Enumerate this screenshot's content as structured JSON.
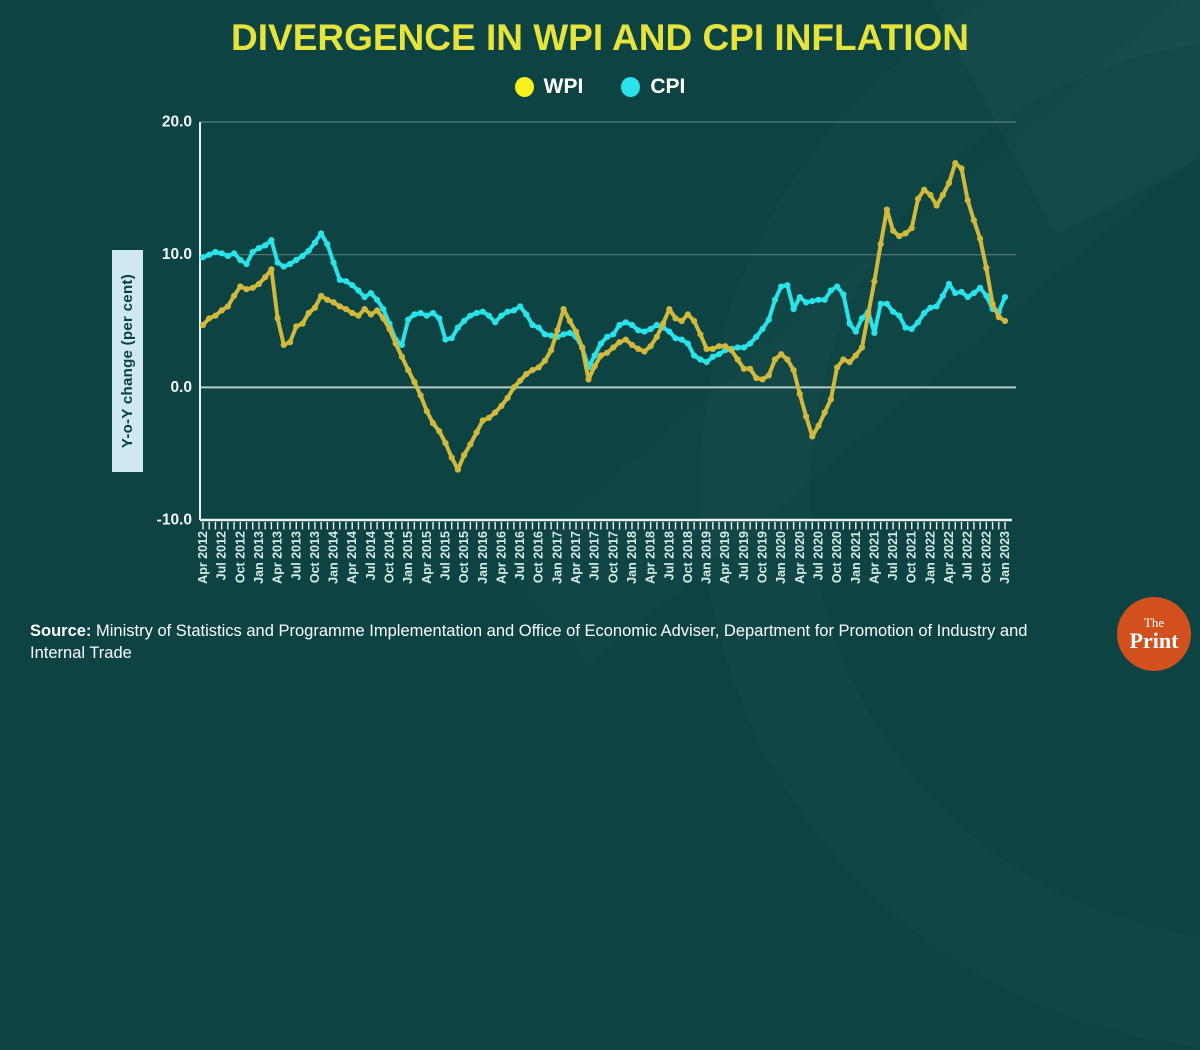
{
  "title": "DIVERGENCE IN WPI AND CPI INFLATION",
  "legend": {
    "items": [
      {
        "label": "WPI",
        "color": "#f6f21c"
      },
      {
        "label": "CPI",
        "color": "#29e2ea"
      }
    ]
  },
  "y_axis": {
    "title": "Y-o-Y change (per cent)",
    "tick_labels": [
      "20.0",
      "10.0",
      "0.0",
      "-10.0"
    ]
  },
  "source": {
    "label": "Source:",
    "text": " Ministry of Statistics and Programme Implementation  and Office of Economic Adviser, Department for Promotion of Industry and Internal Trade"
  },
  "logo": {
    "line1": "The",
    "line2": "Print"
  },
  "colors": {
    "background": "#0d4343",
    "title": "#e6e33c",
    "axis": "#e9f4f1",
    "gridline": "rgba(255,255,255,0.30)",
    "zero_line": "rgba(240,248,246,0.75)",
    "x_tick_label": "#d5ebe4",
    "y_tick_label": "#f3f8f6",
    "wpi_line": "#d0b93c",
    "cpi_line": "#29e2ea"
  },
  "chart_data": {
    "type": "line",
    "title": "DIVERGENCE IN WPI AND CPI INFLATION",
    "ylabel": "Y-o-Y change (per cent)",
    "ylim": [
      -10,
      20
    ],
    "y_gridlines": [
      20,
      10,
      0
    ],
    "x_frequency": "monthly",
    "x_start": "Apr 2012",
    "x_end": "Jan 2023",
    "legend_position": "top-center",
    "x_tick_labels": [
      "Apr 2012",
      "Jul 2012",
      "Oct 2012",
      "Jan 2013",
      "Apr 2013",
      "Jul 2013",
      "Oct 2013",
      "Jan 2014",
      "Apr 2014",
      "Jul 2014",
      "Oct 2014",
      "Jan 2015",
      "Apr 2015",
      "Jul 2015",
      "Oct 2015",
      "Jan 2016",
      "Apr 2016",
      "Jul 2016",
      "Oct 2016",
      "Jan 2017",
      "Apr 2017",
      "Jul 2017",
      "Oct 2017",
      "Jan 2018",
      "Apr 2018",
      "Jul 2018",
      "Oct 2018",
      "Jan 2019",
      "Apr 2019",
      "Jul 2019",
      "Oct 2019",
      "Jan 2020",
      "Apr 2020",
      "Jul 2020",
      "Oct 2020",
      "Jan 2021",
      "Apr 2021",
      "Jul 2021",
      "Oct 2021",
      "Jan 2022",
      "Apr 2022",
      "Jul 2022",
      "Oct 2022",
      "Jan 2023"
    ],
    "series": [
      {
        "name": "WPI",
        "color": "#d0b93c",
        "values": [
          4.7,
          5.2,
          5.4,
          5.8,
          6.1,
          6.9,
          7.6,
          7.4,
          7.5,
          7.8,
          8.3,
          8.9,
          5.2,
          3.2,
          3.4,
          4.6,
          4.8,
          5.6,
          6.0,
          6.9,
          6.6,
          6.4,
          6.1,
          5.9,
          5.6,
          5.4,
          5.9,
          5.5,
          5.8,
          5.2,
          4.4,
          3.3,
          2.3,
          1.3,
          0.4,
          -0.6,
          -1.8,
          -2.7,
          -3.3,
          -4.2,
          -5.3,
          -6.2,
          -5.1,
          -4.3,
          -3.4,
          -2.5,
          -2.3,
          -1.9,
          -1.4,
          -0.8,
          0.0,
          0.5,
          1.0,
          1.3,
          1.5,
          2.0,
          2.8,
          4.3,
          5.9,
          5.0,
          4.2,
          3.0,
          0.6,
          1.6,
          2.4,
          2.6,
          3.0,
          3.4,
          3.6,
          3.2,
          2.9,
          2.7,
          3.1,
          3.8,
          4.8,
          5.9,
          5.2,
          5.0,
          5.5,
          5.0,
          4.0,
          2.9,
          2.9,
          3.1,
          3.1,
          2.8,
          2.1,
          1.4,
          1.4,
          0.7,
          0.6,
          0.9,
          2.1,
          2.5,
          2.1,
          1.3,
          -0.5,
          -2.2,
          -3.7,
          -2.9,
          -1.9,
          -0.9,
          1.5,
          2.1,
          1.9,
          2.4,
          3.0,
          5.5,
          8.0,
          10.8,
          13.4,
          11.8,
          11.4,
          11.6,
          12.0,
          14.2,
          14.9,
          14.5,
          13.7,
          14.5,
          15.4,
          16.9,
          16.5,
          14.1,
          12.6,
          11.2,
          9.0,
          6.3,
          5.3,
          5.0
        ]
      },
      {
        "name": "CPI",
        "color": "#29e2ea",
        "values": [
          9.8,
          10.0,
          10.2,
          10.1,
          9.9,
          10.1,
          9.6,
          9.3,
          10.2,
          10.5,
          10.7,
          11.1,
          9.4,
          9.1,
          9.3,
          9.6,
          9.9,
          10.3,
          10.9,
          11.6,
          10.8,
          9.4,
          8.1,
          8.0,
          7.7,
          7.3,
          6.8,
          7.1,
          6.6,
          5.9,
          4.8,
          3.6,
          3.2,
          5.1,
          5.5,
          5.6,
          5.4,
          5.6,
          5.2,
          3.6,
          3.7,
          4.5,
          5.0,
          5.4,
          5.6,
          5.7,
          5.4,
          4.9,
          5.4,
          5.7,
          5.8,
          6.1,
          5.5,
          4.7,
          4.5,
          4.0,
          3.9,
          3.8,
          4.0,
          4.1,
          3.8,
          3.0,
          1.5,
          2.4,
          3.3,
          3.8,
          4.0,
          4.7,
          4.9,
          4.7,
          4.3,
          4.2,
          4.4,
          4.7,
          4.5,
          4.2,
          3.7,
          3.6,
          3.3,
          2.4,
          2.1,
          1.9,
          2.3,
          2.5,
          2.8,
          2.9,
          3.0,
          3.0,
          3.3,
          3.8,
          4.4,
          5.1,
          6.6,
          7.6,
          7.7,
          5.9,
          6.8,
          6.4,
          6.5,
          6.6,
          6.6,
          7.3,
          7.6,
          7.0,
          4.8,
          4.2,
          5.2,
          5.7,
          4.1,
          6.3,
          6.3,
          5.7,
          5.4,
          4.5,
          4.4,
          4.9,
          5.6,
          6.0,
          6.1,
          6.9,
          7.8,
          7.1,
          7.2,
          6.8,
          7.1,
          7.5,
          6.9,
          5.9,
          5.7,
          6.8
        ]
      }
    ]
  }
}
